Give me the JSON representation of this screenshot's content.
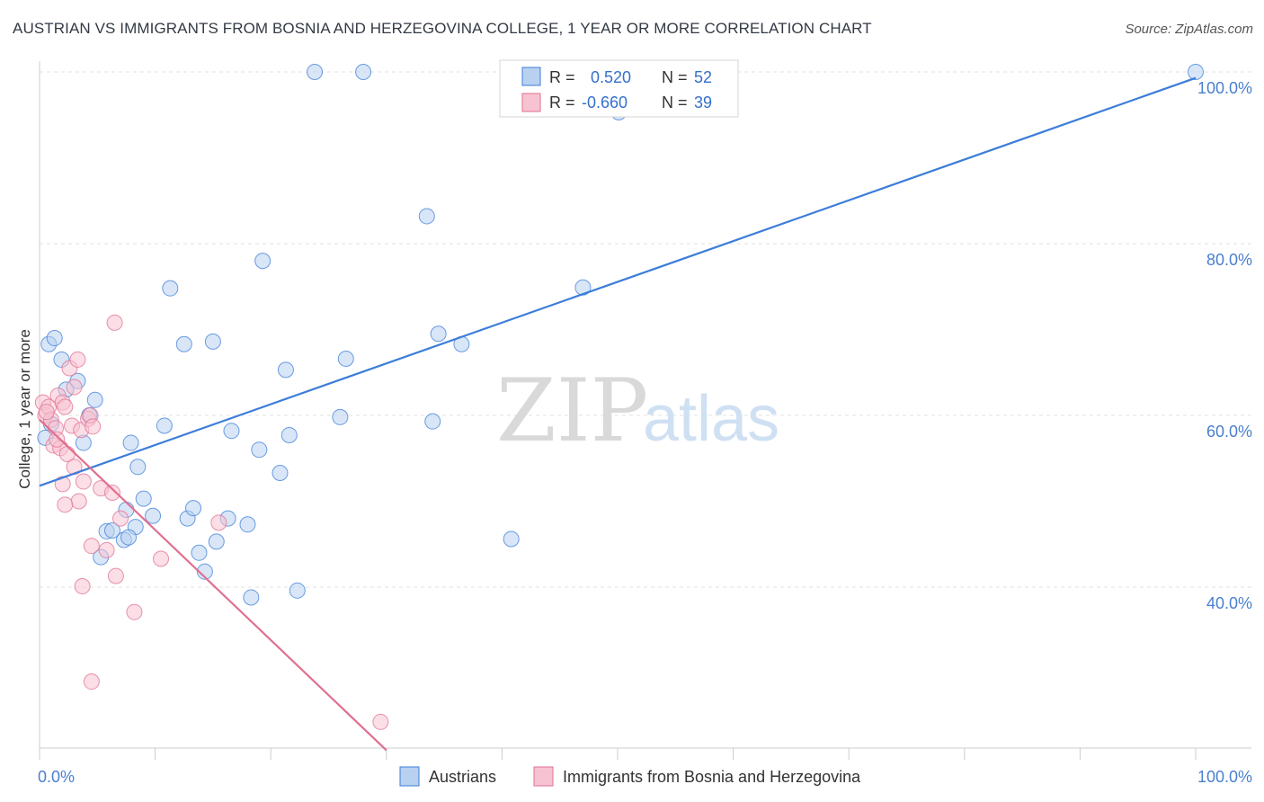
{
  "title": "AUSTRIAN VS IMMIGRANTS FROM BOSNIA AND HERZEGOVINA COLLEGE, 1 YEAR OR MORE CORRELATION CHART",
  "source": "Source: ZipAtlas.com",
  "watermark": {
    "zip": "ZIP",
    "atlas": "atlas"
  },
  "colors": {
    "blue": "#3c7dd9",
    "blue_fill": "#b8d1f0",
    "pink": "#e0708f",
    "pink_fill": "#f7c3d2",
    "axis_label": "#4a7fcf"
  },
  "legend": {
    "r_label": "R =",
    "n_label": "N =",
    "rows": [
      {
        "series": "Austrians",
        "r": "0.520",
        "n": "52"
      },
      {
        "series": "Immigrants from Bosnia and Herzegovina",
        "r": "-0.660",
        "n": "39"
      }
    ]
  },
  "chart_data": {
    "type": "scatter",
    "title": "AUSTRIAN VS IMMIGRANTS FROM BOSNIA AND HERZEGOVINA COLLEGE, 1 YEAR OR MORE CORRELATION CHART",
    "xlabel": "",
    "ylabel": "College, 1 year or more",
    "xlim": [
      0,
      100
    ],
    "ylim": [
      20,
      103
    ],
    "x_tick_labels": [
      "0.0%",
      "100.0%"
    ],
    "y_ticks": [
      40,
      60,
      80,
      100
    ],
    "y_tick_labels": [
      "40.0%",
      "60.0%",
      "80.0%",
      "100.0%"
    ],
    "series": [
      {
        "name": "Austrians",
        "color": "#3c7dd9",
        "trend": {
          "x": [
            0,
            100
          ],
          "y": [
            51.8,
            99.3
          ]
        },
        "points": [
          [
            0.8,
            68.3
          ],
          [
            1.3,
            69.0
          ],
          [
            1.0,
            59.0
          ],
          [
            1.9,
            66.5
          ],
          [
            2.3,
            63.0
          ],
          [
            3.3,
            64.0
          ],
          [
            3.8,
            56.8
          ],
          [
            4.3,
            60.0
          ],
          [
            4.8,
            61.8
          ],
          [
            5.3,
            43.5
          ],
          [
            5.8,
            46.5
          ],
          [
            6.3,
            46.6
          ],
          [
            7.5,
            49.0
          ],
          [
            7.9,
            56.8
          ],
          [
            7.3,
            45.5
          ],
          [
            8.3,
            47.0
          ],
          [
            7.7,
            45.8
          ],
          [
            8.5,
            54.0
          ],
          [
            9.0,
            50.3
          ],
          [
            9.8,
            48.3
          ],
          [
            10.8,
            58.8
          ],
          [
            11.3,
            74.8
          ],
          [
            12.5,
            68.3
          ],
          [
            12.8,
            48.0
          ],
          [
            13.3,
            49.2
          ],
          [
            13.8,
            44.0
          ],
          [
            14.3,
            41.8
          ],
          [
            15.0,
            68.6
          ],
          [
            15.3,
            45.3
          ],
          [
            16.3,
            48.0
          ],
          [
            16.6,
            58.2
          ],
          [
            18.0,
            47.3
          ],
          [
            18.3,
            38.8
          ],
          [
            19.0,
            56.0
          ],
          [
            19.3,
            78.0
          ],
          [
            20.8,
            53.3
          ],
          [
            21.3,
            65.3
          ],
          [
            21.6,
            57.7
          ],
          [
            22.3,
            39.6
          ],
          [
            23.8,
            100.0
          ],
          [
            26.0,
            59.8
          ],
          [
            26.5,
            66.6
          ],
          [
            28.0,
            100.0
          ],
          [
            33.5,
            83.2
          ],
          [
            34.0,
            59.3
          ],
          [
            34.5,
            69.5
          ],
          [
            36.5,
            68.3
          ],
          [
            40.8,
            45.6
          ],
          [
            47.0,
            74.9
          ],
          [
            50.1,
            95.3
          ],
          [
            100.0,
            100.0
          ],
          [
            0.5,
            57.4
          ]
        ]
      },
      {
        "name": "Immigrants from Bosnia and Herzegovina",
        "color": "#e0708f",
        "trend": {
          "x": [
            0,
            30
          ],
          "y": [
            59.5,
            21.0
          ]
        },
        "points": [
          [
            0.3,
            61.5
          ],
          [
            0.5,
            60.0
          ],
          [
            0.8,
            61.0
          ],
          [
            1.0,
            59.5
          ],
          [
            1.2,
            56.5
          ],
          [
            1.4,
            58.5
          ],
          [
            1.6,
            62.3
          ],
          [
            1.8,
            56.2
          ],
          [
            2.0,
            61.5
          ],
          [
            2.2,
            61.0
          ],
          [
            2.0,
            52.0
          ],
          [
            2.4,
            55.5
          ],
          [
            2.6,
            65.5
          ],
          [
            2.8,
            58.8
          ],
          [
            3.0,
            54.0
          ],
          [
            3.0,
            63.3
          ],
          [
            3.3,
            66.5
          ],
          [
            3.4,
            50.0
          ],
          [
            3.6,
            58.3
          ],
          [
            3.8,
            52.3
          ],
          [
            4.2,
            59.6
          ],
          [
            4.4,
            60.0
          ],
          [
            4.6,
            58.7
          ],
          [
            4.5,
            44.8
          ],
          [
            5.3,
            51.5
          ],
          [
            5.8,
            44.3
          ],
          [
            6.3,
            51.0
          ],
          [
            6.5,
            70.8
          ],
          [
            6.6,
            41.3
          ],
          [
            7.0,
            48.0
          ],
          [
            8.2,
            37.1
          ],
          [
            10.5,
            43.3
          ],
          [
            15.5,
            47.5
          ],
          [
            4.5,
            29.0
          ],
          [
            29.5,
            24.3
          ],
          [
            3.7,
            40.1
          ],
          [
            1.5,
            57.2
          ],
          [
            0.6,
            60.4
          ],
          [
            2.2,
            49.6
          ]
        ]
      }
    ]
  },
  "bottom_legend": [
    "Austrians",
    "Immigrants from Bosnia and Herzegovina"
  ]
}
